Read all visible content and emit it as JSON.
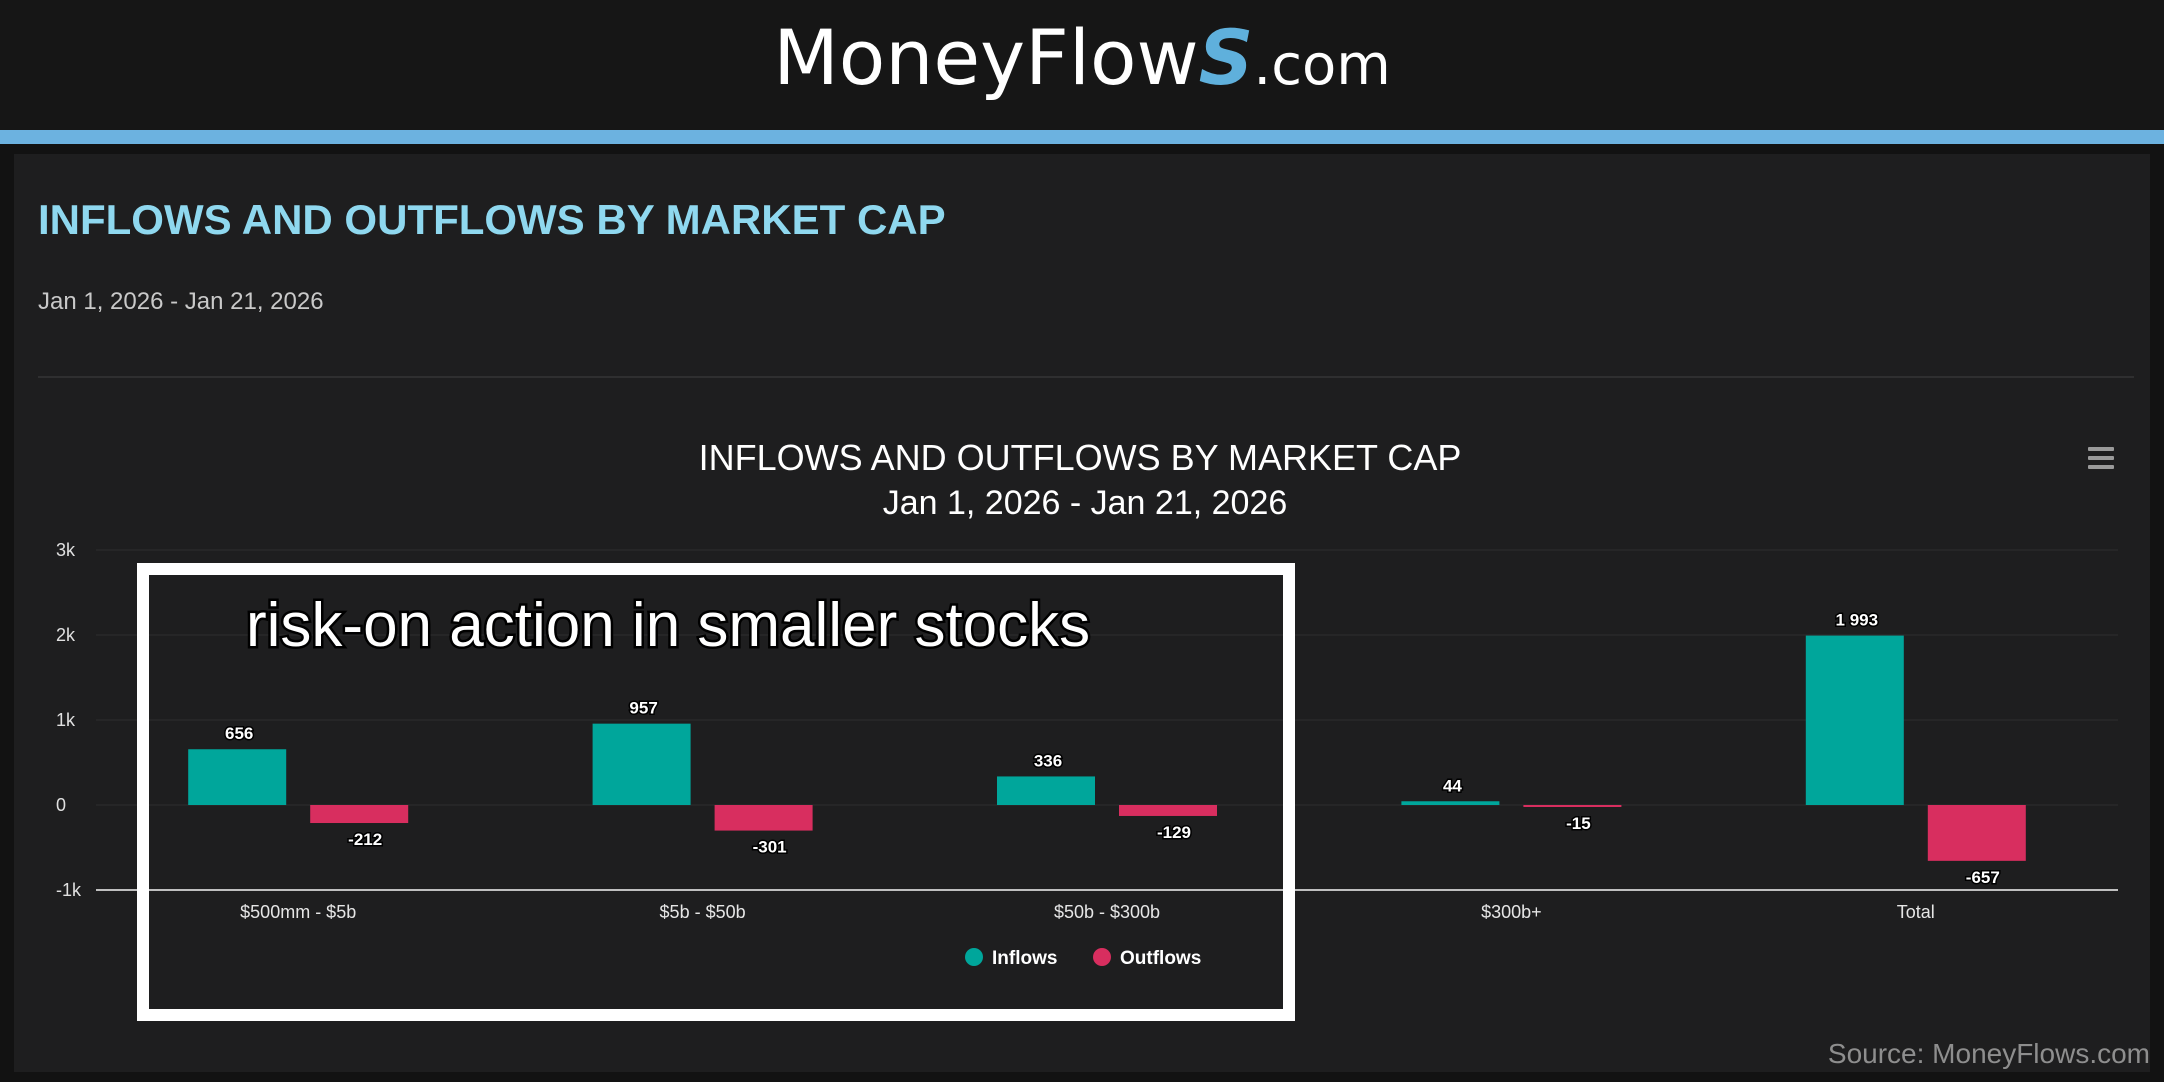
{
  "header": {
    "logo_main": "MoneyFlow",
    "logo_s": "S",
    "logo_domain": ".com"
  },
  "panel": {
    "title": "INFLOWS AND OUTFLOWS BY MARKET CAP",
    "date_range": "Jan 1, 2026 - Jan 21, 2026"
  },
  "menu_icon": "hamburger-menu-icon",
  "chart_data": {
    "type": "bar",
    "title": "INFLOWS AND OUTFLOWS BY MARKET CAP",
    "subtitle": "Jan 1, 2026 - Jan 21, 2026",
    "categories": [
      "$500mm - $5b",
      "$5b - $50b",
      "$50b - $300b",
      "$300b+",
      "Total"
    ],
    "series": [
      {
        "name": "Inflows",
        "color": "#00a69b",
        "values": [
          656,
          957,
          336,
          44,
          1993
        ],
        "labels": [
          "656",
          "957",
          "336",
          "44",
          "1 993"
        ]
      },
      {
        "name": "Outflows",
        "color": "#d82e5f",
        "values": [
          -212,
          -301,
          -129,
          -15,
          -657
        ],
        "labels": [
          "-212",
          "-301",
          "-129",
          "-15",
          "-657"
        ]
      }
    ],
    "y_ticks": [
      {
        "value": 3000,
        "label": "3k"
      },
      {
        "value": 2000,
        "label": "2k"
      },
      {
        "value": 1000,
        "label": "1k"
      },
      {
        "value": 0,
        "label": "0"
      },
      {
        "value": -1000,
        "label": "-1k"
      }
    ],
    "ylim": [
      -1000,
      3000
    ],
    "grid": true,
    "legend": "bottom-center",
    "annotation": "risk-on action in smaller stocks"
  },
  "source": "Source: MoneyFlows.com"
}
